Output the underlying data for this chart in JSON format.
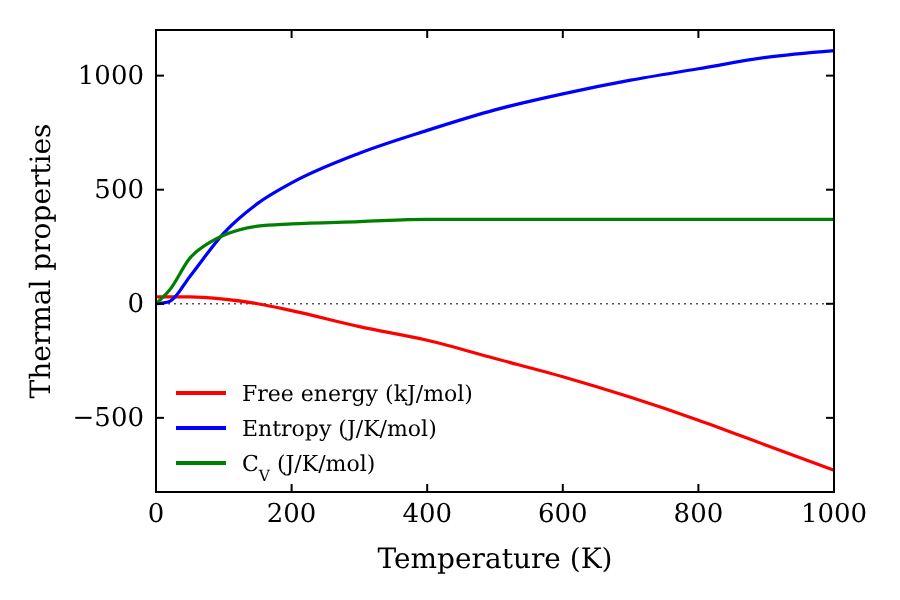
{
  "chart_data": {
    "type": "line",
    "xlabel": "Temperature (K)",
    "ylabel": "Thermal properties",
    "xlim": [
      0,
      1000
    ],
    "xticks": [
      0,
      200,
      400,
      600,
      800,
      1000
    ],
    "ylim": [
      -825,
      1200
    ],
    "yticks": [
      {
        "value": -500,
        "label": "−500"
      },
      0,
      500,
      1000
    ],
    "legend": "bottom left",
    "grid": false,
    "line_style": "solid",
    "marker": "none",
    "ref_lines": [
      {
        "axis": "y",
        "value": 0,
        "color": "#555555",
        "line_style": "dotted"
      }
    ],
    "series": [
      {
        "name": "Free energy (kJ/mol)",
        "color": "#ff0000",
        "x": [
          0,
          50,
          100,
          150,
          200,
          300,
          400,
          500,
          600,
          700,
          800,
          900,
          1000
        ],
        "values": [
          30,
          30,
          20,
          0,
          -30,
          -100,
          -160,
          -240,
          -320,
          -410,
          -510,
          -620,
          -730
        ]
      },
      {
        "name": "Entropy (J/K/mol)",
        "color": "#0000ff",
        "x": [
          0,
          20,
          50,
          100,
          150,
          200,
          300,
          400,
          500,
          600,
          700,
          800,
          900,
          1000
        ],
        "values": [
          0,
          10,
          120,
          310,
          440,
          530,
          660,
          760,
          850,
          920,
          980,
          1030,
          1080,
          1110
        ]
      },
      {
        "name": "C$_{V}$ (J/K/mol)",
        "color": "#008000",
        "x": [
          0,
          20,
          50,
          80,
          100,
          150,
          200,
          300,
          400,
          600,
          1000
        ],
        "values": [
          0,
          60,
          200,
          270,
          300,
          340,
          350,
          360,
          370,
          370,
          370
        ]
      }
    ]
  }
}
